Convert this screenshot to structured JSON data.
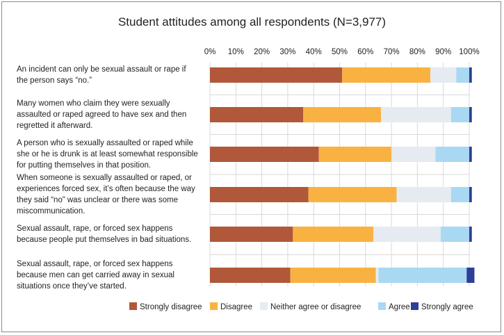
{
  "chart_data": {
    "type": "bar",
    "orientation": "horizontal",
    "stacked": true,
    "title": "Student attitudes among all respondents (N=3,977)",
    "x_ticks": [
      "0%",
      "10%",
      "20%",
      "30%",
      "40%",
      "50%",
      "60%",
      "70%",
      "80%",
      "90%",
      "100%"
    ],
    "xlim": [
      0,
      100
    ],
    "grid": true,
    "legend_position": "bottom",
    "categories": [
      "An incident can only be sexual assault or rape if the person says “no.”",
      "Many women who claim they were sexually assaulted or raped agreed to have sex and then regretted it afterward.",
      "A person who is sexually assaulted or raped while she or he is drunk is at least somewhat responsible for putting themselves in that position.",
      "When someone is sexually assaulted or raped, or experiences forced sex, it’s often because the way they said “no” was unclear or there was some miscommunication.",
      "Sexual assault, rape, or forced sex happens because people put themselves in bad situations.",
      "Sexual assault, rape, or forced sex happens because men can get carried away in sexual situations once they’ve started."
    ],
    "series": [
      {
        "name": "Strongly disagree",
        "color": "#b1583a",
        "values": [
          51,
          36,
          42,
          38,
          32,
          31
        ]
      },
      {
        "name": "Disagree",
        "color": "#f9b241",
        "values": [
          34,
          30,
          28,
          34,
          31,
          33
        ]
      },
      {
        "name": "Neither agree or disagree",
        "color": "#e5ebf0",
        "values": [
          10,
          27,
          17,
          21,
          26,
          1
        ]
      },
      {
        "name": "Agree",
        "color": "#a9d8f3",
        "values": [
          5,
          7,
          13,
          7,
          11,
          34
        ]
      },
      {
        "name": "Strongly agree",
        "color": "#2e3f97",
        "values": [
          1,
          1,
          1,
          1,
          1,
          3
        ]
      }
    ]
  }
}
